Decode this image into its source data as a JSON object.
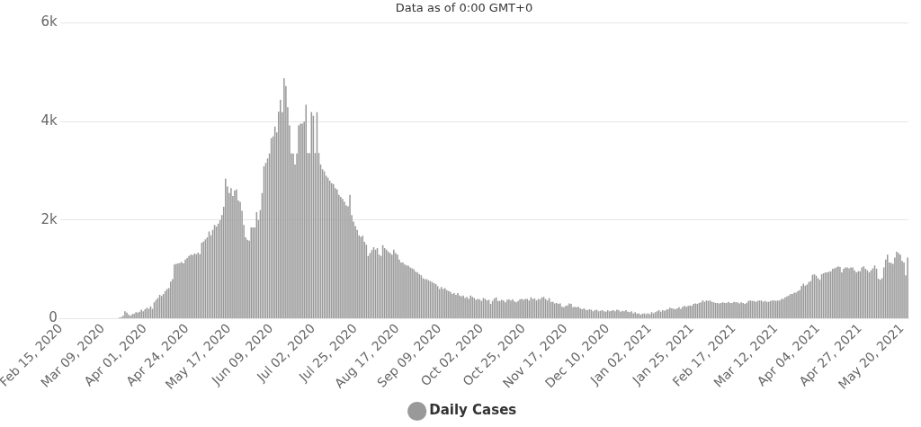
{
  "chart_data": {
    "type": "bar",
    "title": "Data as of 0:00 GMT+0",
    "categories": [
      "Feb 15, 2020",
      null,
      null,
      null,
      null,
      null,
      null,
      null,
      null,
      null,
      null,
      null,
      null,
      null,
      null,
      null,
      null,
      null,
      null,
      null,
      null,
      null,
      null,
      "Mar 09, 2020",
      null,
      null,
      null,
      null,
      null,
      null,
      null,
      null,
      null,
      null,
      null,
      null,
      null,
      null,
      null,
      null,
      null,
      null,
      null,
      null,
      null,
      null,
      "Apr 01, 2020",
      null,
      null,
      null,
      null,
      null,
      null,
      null,
      null,
      null,
      null,
      null,
      null,
      null,
      null,
      null,
      null,
      null,
      null,
      null,
      null,
      null,
      null,
      "Apr 24, 2020",
      null,
      null,
      null,
      null,
      null,
      null,
      null,
      null,
      null,
      null,
      null,
      null,
      null,
      null,
      null,
      null,
      null,
      null,
      null,
      null,
      null,
      null,
      "May 17, 2020",
      null,
      null,
      null,
      null,
      null,
      null,
      null,
      null,
      null,
      null,
      null,
      null,
      null,
      null,
      null,
      null,
      null,
      null,
      null,
      null,
      null,
      null,
      "Jun 09, 2020",
      null,
      null,
      null,
      null,
      null,
      null,
      null,
      null,
      null,
      null,
      null,
      null,
      null,
      null,
      null,
      null,
      null,
      null,
      null,
      null,
      null,
      null,
      "Jul 02, 2020",
      null,
      null,
      null,
      null,
      null,
      null,
      null,
      null,
      null,
      null,
      null,
      null,
      null,
      null,
      null,
      null,
      null,
      null,
      null,
      null,
      null,
      null,
      "Jul 25, 2020",
      null,
      null,
      null,
      null,
      null,
      null,
      null,
      null,
      null,
      null,
      null,
      null,
      null,
      null,
      null,
      null,
      null,
      null,
      null,
      null,
      null,
      null,
      "Aug 17, 2020",
      null,
      null,
      null,
      null,
      null,
      null,
      null,
      null,
      null,
      null,
      null,
      null,
      null,
      null,
      null,
      null,
      null,
      null,
      null,
      null,
      null,
      null,
      "Sep 09, 2020",
      null,
      null,
      null,
      null,
      null,
      null,
      null,
      null,
      null,
      null,
      null,
      null,
      null,
      null,
      null,
      null,
      null,
      null,
      null,
      null,
      null,
      null,
      "Oct 02, 2020",
      null,
      null,
      null,
      null,
      null,
      null,
      null,
      null,
      null,
      null,
      null,
      null,
      null,
      null,
      null,
      null,
      null,
      null,
      null,
      null,
      null,
      null,
      "Oct 25, 2020",
      null,
      null,
      null,
      null,
      null,
      null,
      null,
      null,
      null,
      null,
      null,
      null,
      null,
      null,
      null,
      null,
      null,
      null,
      null,
      null,
      null,
      null,
      "Nov 17, 2020",
      null,
      null,
      null,
      null,
      null,
      null,
      null,
      null,
      null,
      null,
      null,
      null,
      null,
      null,
      null,
      null,
      null,
      null,
      null,
      null,
      null,
      null,
      "Dec 10, 2020",
      null,
      null,
      null,
      null,
      null,
      null,
      null,
      null,
      null,
      null,
      null,
      null,
      null,
      null,
      null,
      null,
      null,
      null,
      null,
      null,
      null,
      null,
      "Jan 02, 2021",
      null,
      null,
      null,
      null,
      null,
      null,
      null,
      null,
      null,
      null,
      null,
      null,
      null,
      null,
      null,
      null,
      null,
      null,
      null,
      null,
      null,
      null,
      "Jan 25, 2021",
      null,
      null,
      null,
      null,
      null,
      null,
      null,
      null,
      null,
      null,
      null,
      null,
      null,
      null,
      null,
      null,
      null,
      null,
      null,
      null,
      null,
      null,
      "Feb 17, 2021",
      null,
      null,
      null,
      null,
      null,
      null,
      null,
      null,
      null,
      null,
      null,
      null,
      null,
      null,
      null,
      null,
      null,
      null,
      null,
      null,
      null,
      null,
      "Mar 12, 2021",
      null,
      null,
      null,
      null,
      null,
      null,
      null,
      null,
      null,
      null,
      null,
      null,
      null,
      null,
      null,
      null,
      null,
      null,
      null,
      null,
      null,
      null,
      "Apr 04, 2021",
      null,
      null,
      null,
      null,
      null,
      null,
      null,
      null,
      null,
      null,
      null,
      null,
      null,
      null,
      null,
      null,
      null,
      null,
      null,
      null,
      null,
      null,
      "Apr 27, 2021",
      null,
      null,
      null,
      null,
      null,
      null,
      null,
      null,
      null,
      null,
      null,
      null,
      null,
      null,
      null,
      null,
      null,
      null,
      null,
      null,
      null,
      null,
      "May 20, 2021",
      null,
      null,
      null
    ],
    "series": [
      {
        "name": "Daily Cases",
        "color": "#999999",
        "values": [
          0,
          0,
          0,
          0,
          0,
          0,
          0,
          0,
          0,
          0,
          0,
          0,
          0,
          0,
          0,
          0,
          0,
          0,
          0,
          0,
          0,
          0,
          0,
          0,
          0,
          0,
          0,
          0,
          0,
          0,
          0,
          0,
          20,
          30,
          60,
          150,
          120,
          80,
          60,
          90,
          100,
          130,
          120,
          140,
          180,
          150,
          190,
          220,
          200,
          250,
          200,
          330,
          380,
          420,
          480,
          460,
          500,
          560,
          600,
          620,
          750,
          800,
          1100,
          1110,
          1120,
          1130,
          1150,
          1120,
          1200,
          1230,
          1270,
          1300,
          1290,
          1320,
          1310,
          1340,
          1310,
          1540,
          1570,
          1610,
          1650,
          1770,
          1690,
          1800,
          1900,
          1870,
          1930,
          2000,
          2100,
          2270,
          2840,
          2680,
          2550,
          2650,
          2490,
          2600,
          2620,
          2400,
          2370,
          2190,
          1900,
          1650,
          1600,
          1580,
          1850,
          1850,
          1850,
          2160,
          2000,
          2200,
          2550,
          3090,
          3160,
          3250,
          3350,
          3660,
          3700,
          3900,
          3780,
          4200,
          4440,
          4190,
          4880,
          4720,
          4290,
          3920,
          3350,
          3350,
          3130,
          3350,
          3920,
          3960,
          3960,
          4000,
          4340,
          3360,
          3360,
          4190,
          4120,
          3360,
          4190,
          3360,
          3130,
          3030,
          2990,
          2900,
          2860,
          2800,
          2750,
          2730,
          2650,
          2620,
          2510,
          2470,
          2430,
          2370,
          2300,
          2280,
          2510,
          2100,
          1970,
          1880,
          1800,
          1690,
          1660,
          1680,
          1560,
          1500,
          1270,
          1330,
          1390,
          1450,
          1400,
          1430,
          1300,
          1270,
          1490,
          1430,
          1400,
          1360,
          1330,
          1300,
          1400,
          1330,
          1300,
          1200,
          1140,
          1140,
          1100,
          1080,
          1075,
          1040,
          1020,
          1000,
          950,
          940,
          900,
          880,
          820,
          800,
          800,
          780,
          760,
          740,
          720,
          700,
          660,
          600,
          640,
          600,
          620,
          580,
          560,
          540,
          500,
          520,
          480,
          520,
          470,
          450,
          470,
          420,
          440,
          400,
          470,
          440,
          420,
          380,
          400,
          390,
          360,
          420,
          400,
          370,
          380,
          300,
          360,
          410,
          430,
          360,
          360,
          380,
          370,
          330,
          380,
          390,
          370,
          390,
          350,
          330,
          360,
          390,
          400,
          380,
          400,
          400,
          370,
          430,
          400,
          410,
          370,
          400,
          390,
          430,
          440,
          400,
          370,
          420,
          340,
          340,
          310,
          320,
          300,
          310,
          240,
          230,
          260,
          270,
          310,
          300,
          230,
          240,
          230,
          240,
          210,
          190,
          210,
          180,
          170,
          190,
          180,
          150,
          170,
          180,
          150,
          160,
          170,
          150,
          140,
          170,
          150,
          160,
          170,
          150,
          180,
          170,
          140,
          160,
          150,
          170,
          140,
          130,
          150,
          110,
          130,
          100,
          110,
          80,
          100,
          110,
          90,
          110,
          90,
          130,
          110,
          130,
          150,
          170,
          140,
          170,
          160,
          180,
          190,
          220,
          210,
          200,
          190,
          210,
          230,
          200,
          240,
          260,
          240,
          260,
          270,
          260,
          300,
          310,
          300,
          320,
          330,
          370,
          340,
          370,
          360,
          370,
          340,
          330,
          320,
          320,
          310,
          320,
          330,
          320,
          320,
          340,
          320,
          320,
          340,
          330,
          330,
          310,
          330,
          320,
          300,
          320,
          360,
          370,
          360,
          360,
          340,
          360,
          370,
          370,
          340,
          360,
          340,
          340,
          360,
          370,
          370,
          360,
          370,
          370,
          400,
          400,
          430,
          450,
          470,
          500,
          500,
          530,
          530,
          560,
          580,
          660,
          710,
          670,
          690,
          740,
          760,
          890,
          900,
          870,
          820,
          790,
          900,
          920,
          940,
          940,
          950,
          960,
          1010,
          1020,
          1040,
          1060,
          1050,
          940,
          1010,
          1040,
          1040,
          1020,
          1040,
          1040,
          980,
          940,
          960,
          960,
          1040,
          1060,
          1010,
          980,
          940,
          980,
          1020,
          1080,
          1010,
          810,
          790,
          820,
          1040,
          1200,
          1300,
          1140,
          1130,
          1110,
          1240,
          1360,
          1330,
          1300,
          1170,
          1140,
          880,
          1240
        ]
      }
    ],
    "ylim": [
      0,
      6000
    ],
    "yticks": [
      {
        "value": 0,
        "label": "0"
      },
      {
        "value": 2000,
        "label": "2k"
      },
      {
        "value": 4000,
        "label": "4k"
      },
      {
        "value": 6000,
        "label": "6k"
      }
    ],
    "grid": "y",
    "legend": "bottom"
  }
}
